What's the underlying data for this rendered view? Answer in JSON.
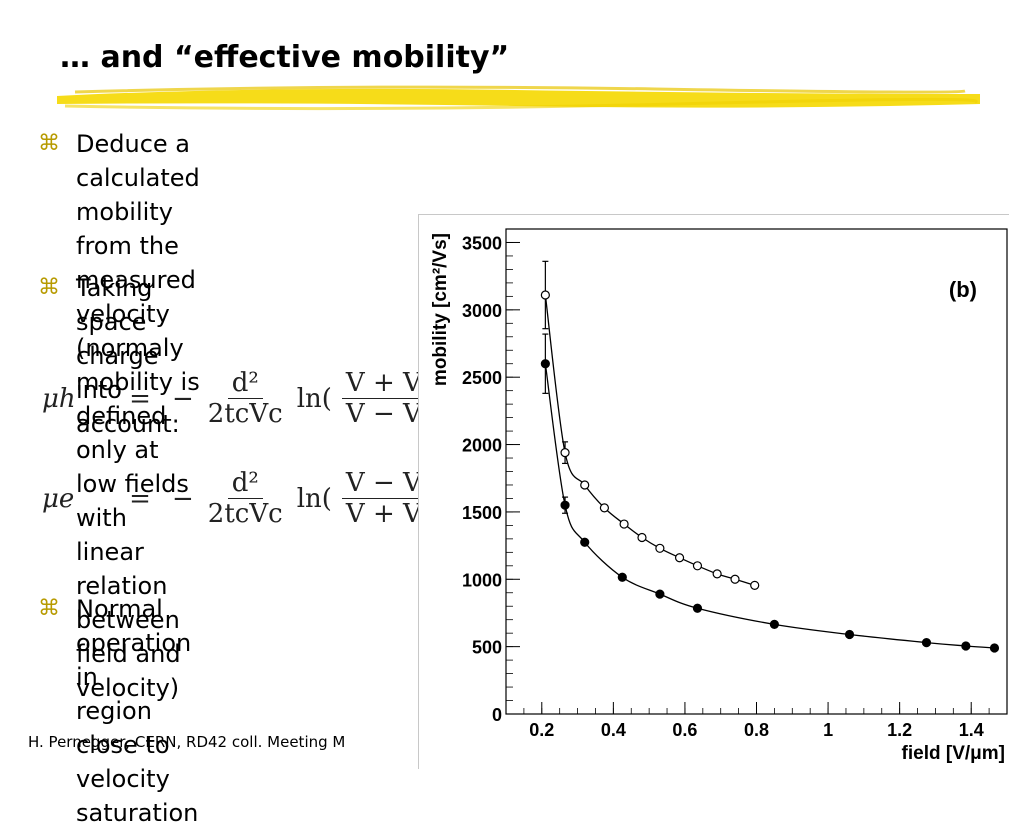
{
  "slide": {
    "title": "… and “effective mobility”",
    "bullets": [
      {
        "lines": [
          "Deduce a calculated mobility from the measured velocity (normaly",
          "mobility is defined only at low fields with linear relation between",
          "field and velocity)"
        ]
      },
      {
        "lines": [
          "Taking space charge into",
          "account:"
        ]
      },
      {
        "lines": [
          "Normal operation in",
          "region close to velocity",
          "saturation"
        ]
      }
    ],
    "bullet_glyph": "⌘",
    "formulas": [
      {
        "lhs": "μh",
        "neg": "−",
        "frac1_num": "d²",
        "frac1_den": "2tcVc",
        "ln": "ln(",
        "frac2_num": "V + Vc",
        "frac2_den": "V − Vc",
        "close": ")"
      },
      {
        "lhs": "μe",
        "neg": "−",
        "frac1_num": "d²",
        "frac1_den": "2tcVc",
        "ln": "ln(",
        "frac2_num": "V − Vc",
        "frac2_den": "V + Vc",
        "close": ")"
      }
    ],
    "equals": "=",
    "footer": "H. Pernegger, CERN, RD42 coll. Meeting M"
  },
  "colors": {
    "highlight": "#f5d800",
    "bullet": "#b79a00"
  },
  "chart_data": {
    "type": "scatter",
    "panel_label": "(b)",
    "xlabel": "field [V/μm]",
    "ylabel": "mobility [cm²/Vs]",
    "xlim": [
      0.1,
      1.5
    ],
    "ylim": [
      0,
      3600
    ],
    "xticks": [
      0.2,
      0.4,
      0.6,
      0.8,
      1,
      1.2,
      1.4
    ],
    "xtick_labels": [
      "0.2",
      "0.4",
      "0.6",
      "0.8",
      "1",
      "1.2",
      "1.4"
    ],
    "yticks": [
      0,
      500,
      1000,
      1500,
      2000,
      2500,
      3000,
      3500
    ],
    "ytick_labels": [
      "0",
      "500",
      "1000",
      "1500",
      "2000",
      "2500",
      "3000",
      "3500"
    ],
    "series": [
      {
        "marker": "open-circle",
        "x": [
          0.21,
          0.265,
          0.32,
          0.375,
          0.43,
          0.48,
          0.53,
          0.585,
          0.635,
          0.69,
          0.74,
          0.795
        ],
        "y": [
          3110,
          1940,
          1700,
          1530,
          1410,
          1310,
          1230,
          1160,
          1100,
          1040,
          1000,
          955
        ],
        "err": [
          250,
          80,
          0,
          0,
          0,
          0,
          0,
          0,
          0,
          0,
          0,
          0
        ]
      },
      {
        "marker": "filled-circle",
        "x": [
          0.21,
          0.265,
          0.32,
          0.425,
          0.53,
          0.635,
          0.85,
          1.06,
          1.275,
          1.385,
          1.465
        ],
        "y": [
          2600,
          1550,
          1275,
          1015,
          890,
          785,
          665,
          590,
          530,
          505,
          490
        ],
        "err": [
          220,
          60,
          0,
          0,
          0,
          0,
          0,
          0,
          0,
          0,
          0
        ]
      }
    ],
    "grid": false,
    "legend": "none"
  }
}
